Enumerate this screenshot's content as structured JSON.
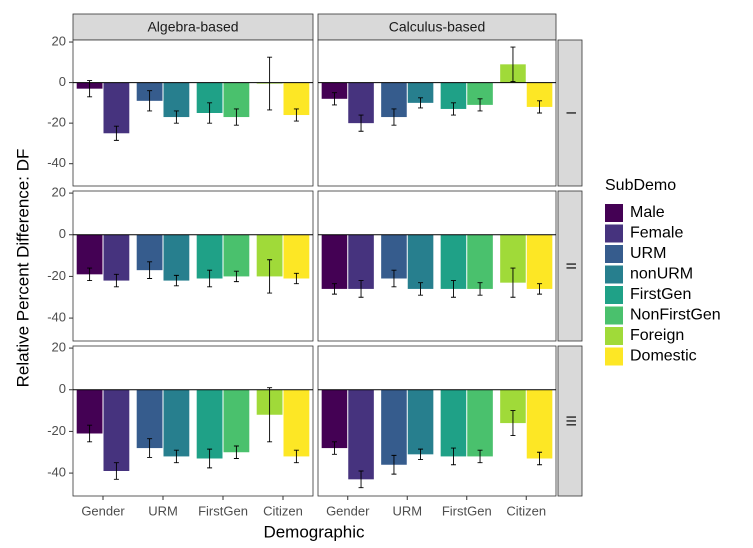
{
  "chart_data": {
    "type": "bar",
    "x_label": "Demographic",
    "y_label": "Relative Percent Difference: DF",
    "legend_title": "SubDemo",
    "categories": [
      "Gender",
      "URM",
      "FirstGen",
      "Citizen"
    ],
    "series": [
      {
        "name": "Male",
        "color": "#440154"
      },
      {
        "name": "Female",
        "color": "#46337e"
      },
      {
        "name": "URM",
        "color": "#365c8d"
      },
      {
        "name": "nonURM",
        "color": "#277f8e"
      },
      {
        "name": "FirstGen",
        "color": "#1fa187"
      },
      {
        "name": "NonFirstGen",
        "color": "#4ac16d"
      },
      {
        "name": "Foreign",
        "color": "#a0da39"
      },
      {
        "name": "Domestic",
        "color": "#fde725"
      }
    ],
    "columns": [
      "Algebra-based",
      "Calculus-based"
    ],
    "rows": [
      "I",
      "II",
      "III"
    ],
    "ylim": [
      -51,
      21
    ],
    "yticks": [
      -40,
      -20,
      0,
      20
    ],
    "panels": [
      {
        "values": [
          -3,
          -25,
          -9,
          -17,
          -15,
          -17,
          -0.5,
          -16
        ],
        "errors": [
          4,
          3.5,
          5,
          3,
          5,
          4,
          13,
          3
        ]
      },
      {
        "values": [
          -8,
          -20,
          -17,
          -10,
          -13,
          -11,
          9,
          -12
        ],
        "errors": [
          3,
          4,
          4,
          2.5,
          3,
          3,
          8.5,
          3
        ]
      },
      {
        "values": [
          -19,
          -22,
          -17,
          -22,
          -21,
          -20,
          -20,
          -21
        ],
        "errors": [
          3,
          3,
          4,
          2.5,
          4,
          2.5,
          8,
          2.5
        ]
      },
      {
        "values": [
          -26,
          -26,
          -21,
          -26,
          -26,
          -26,
          -23,
          -26
        ],
        "errors": [
          2.5,
          4,
          4,
          3,
          4,
          3,
          7,
          2.5
        ]
      },
      {
        "values": [
          -21,
          -39,
          -28,
          -32,
          -33,
          -30,
          -12,
          -32
        ],
        "errors": [
          4,
          4,
          4.5,
          3,
          4.5,
          3,
          13,
          3
        ]
      },
      {
        "values": [
          -28,
          -43,
          -36,
          -31,
          -32,
          -32,
          -16,
          -33
        ],
        "errors": [
          3,
          4,
          4.5,
          2.5,
          4,
          3,
          6,
          3
        ]
      }
    ]
  }
}
